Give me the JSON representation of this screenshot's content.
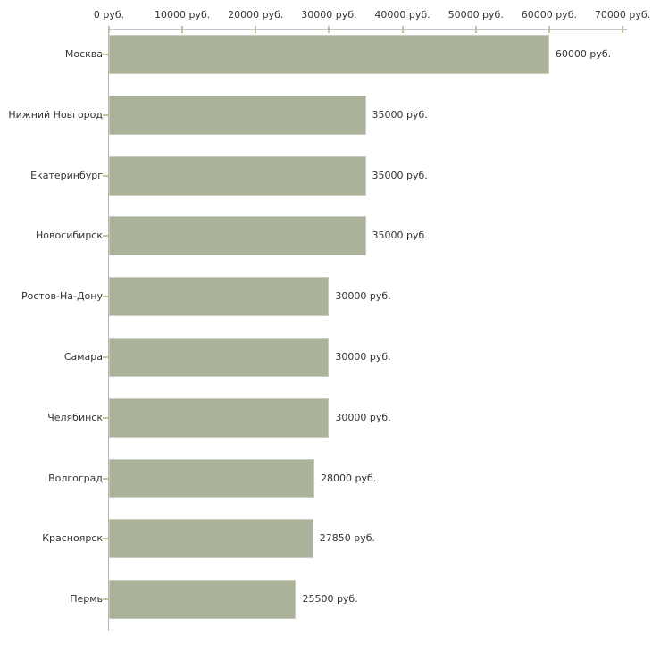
{
  "chart_data": {
    "type": "bar",
    "orientation": "horizontal",
    "title": "",
    "unit": "руб.",
    "categories": [
      "Москва",
      "Нижний Новгород",
      "Екатеринбург",
      "Новосибирск",
      "Ростов-На-Дону",
      "Самара",
      "Челябинск",
      "Волгоград",
      "Красноярск",
      "Пермь"
    ],
    "values": [
      60000,
      35000,
      35000,
      35000,
      30000,
      30000,
      30000,
      28000,
      27850,
      25500
    ],
    "value_labels": [
      "60000 руб.",
      "35000 руб.",
      "35000 руб.",
      "35000 руб.",
      "30000 руб.",
      "30000 руб.",
      "30000 руб.",
      "28000 руб.",
      "27850 руб.",
      "25500 руб."
    ],
    "x_tick_values": [
      0,
      10000,
      20000,
      30000,
      40000,
      50000,
      60000,
      70000
    ],
    "x_tick_labels": [
      "0 руб.",
      "10000 руб.",
      "20000 руб.",
      "30000 руб.",
      "40000 руб.",
      "50000 руб.",
      "60000 руб.",
      "70000 руб."
    ],
    "xlim": [
      0,
      70000
    ],
    "grid": false,
    "legend": false,
    "colors": {
      "bar_fill": "#abb29a",
      "x_axis_line": "#c6c6c6",
      "y_axis_line": "#b3b3b3",
      "tick_mark": "#c3c49e",
      "text": "#333333",
      "background": "#ffffff"
    }
  }
}
